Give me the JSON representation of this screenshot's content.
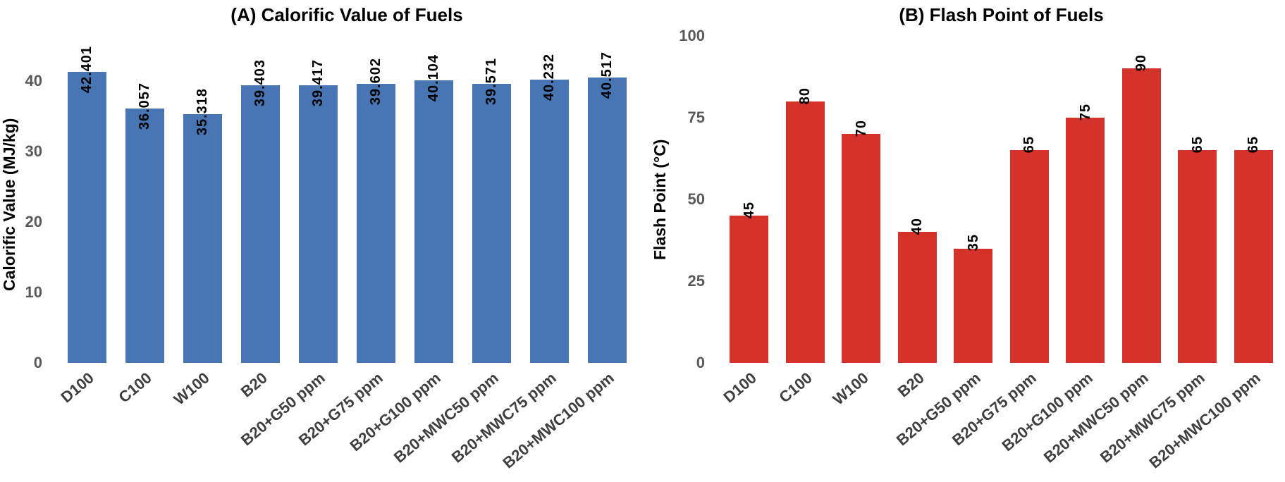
{
  "chart_data": [
    {
      "type": "bar",
      "title": "(A) Calorific Value of Fuels",
      "xlabel": "",
      "ylabel": "Calorific Value (MJ/kg)",
      "categories": [
        "D100",
        "C100",
        "W100",
        "B20",
        "B20+G50 ppm",
        "B20+G75 ppm",
        "B20+G100 ppm",
        "B20+MWC50 ppm",
        "B20+MWC75 ppm",
        "B20+MWC100 ppm"
      ],
      "values": [
        42.401,
        36.057,
        35.318,
        39.403,
        39.417,
        39.602,
        40.104,
        39.571,
        40.232,
        40.517
      ],
      "bar_labels": [
        "42.401",
        "36.057",
        "35.318",
        "39.403",
        "39.417",
        "39.602",
        "40.104",
        "39.571",
        "40.232",
        "40.517"
      ],
      "bar_color": "#4876B4",
      "ylim": [
        0,
        45
      ],
      "yticks": [
        0,
        10,
        20,
        30,
        40
      ],
      "grid": false,
      "legend": "none",
      "value_label_rotation": 90,
      "xtick_rotation": 40
    },
    {
      "type": "bar",
      "title": "(B) Flash Point of Fuels",
      "xlabel": "",
      "ylabel": "Flash Point (°C)",
      "categories": [
        "D100",
        "C100",
        "W100",
        "B20",
        "B20+G50 ppm",
        "B20+G75 ppm",
        "B20+G100 ppm",
        "B20+MWC50 ppm",
        "B20+MWC75 ppm",
        "B20+MWC100 ppm"
      ],
      "values": [
        45,
        80,
        70,
        40,
        35,
        65,
        75,
        90,
        65,
        65
      ],
      "bar_labels": [
        "45",
        "80",
        "70",
        "40",
        "35",
        "65",
        "75",
        "90",
        "65",
        "65"
      ],
      "bar_color": "#D4322A",
      "ylim": [
        0,
        100
      ],
      "yticks": [
        0,
        25,
        50,
        75,
        100
      ],
      "grid": false,
      "legend": "none",
      "value_label_rotation": 90,
      "xtick_rotation": 40
    }
  ]
}
